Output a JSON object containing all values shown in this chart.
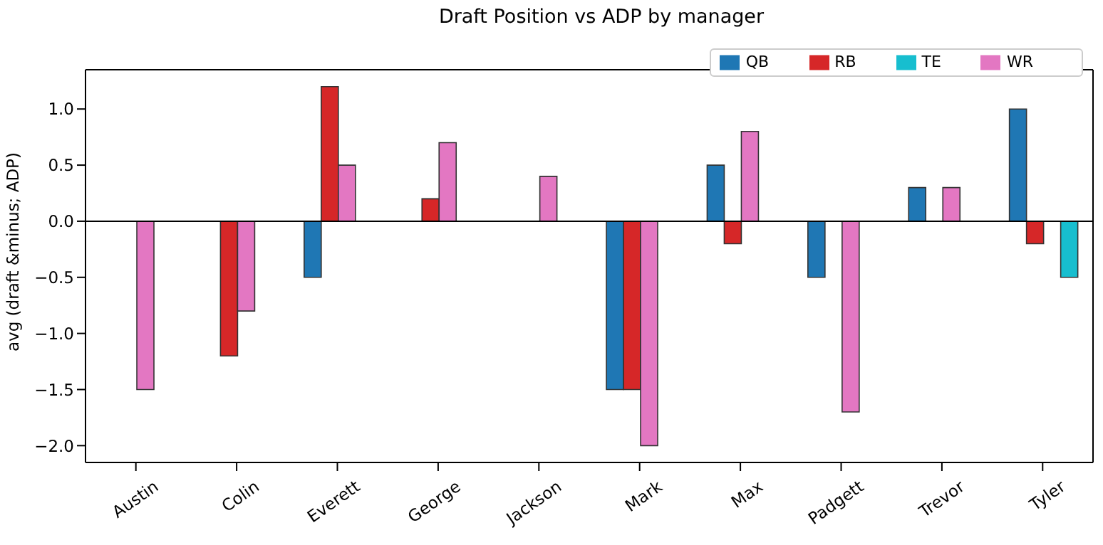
{
  "chart_data": {
    "type": "bar",
    "title": "Draft Position vs ADP by manager",
    "ylabel": "avg (draft &minus; ADP)",
    "categories": [
      "Austin",
      "Colin",
      "Everett",
      "George",
      "Jackson",
      "Mark",
      "Max",
      "Padgett",
      "Trevor",
      "Tyler"
    ],
    "series": [
      {
        "name": "QB",
        "color": "#1f77b4",
        "values": [
          0,
          0,
          -0.5,
          0,
          0,
          -1.5,
          0.5,
          -0.5,
          0.3,
          1.0
        ]
      },
      {
        "name": "RB",
        "color": "#d62728",
        "values": [
          0,
          -1.2,
          1.2,
          0.2,
          0,
          -1.5,
          -0.2,
          0,
          0,
          -0.2
        ]
      },
      {
        "name": "WR",
        "color": "#e377c2",
        "values": [
          -1.5,
          -0.8,
          0.5,
          0.7,
          0.4,
          -2.0,
          0.8,
          -1.7,
          0.3,
          0
        ]
      },
      {
        "name": "TE",
        "color": "#17becf",
        "values": [
          0,
          0,
          0,
          0,
          0,
          0,
          0,
          0,
          0,
          -0.5
        ]
      }
    ],
    "ylim": [
      -2.15,
      1.35
    ],
    "yticks": [
      {
        "value": -2,
        "label": "−2.0"
      },
      {
        "value": -1.5,
        "label": "−1.5"
      },
      {
        "value": -1,
        "label": "−1.0"
      },
      {
        "value": -0.5,
        "label": "−0.5"
      },
      {
        "value": 0,
        "label": "0.0"
      },
      {
        "value": 0.5,
        "label": "0.5"
      },
      {
        "value": 1,
        "label": "1.0"
      }
    ],
    "ref_lines": [
      {
        "axis": "y",
        "value": 0,
        "color": "#000000"
      }
    ],
    "grid": false,
    "legend": "top right"
  }
}
